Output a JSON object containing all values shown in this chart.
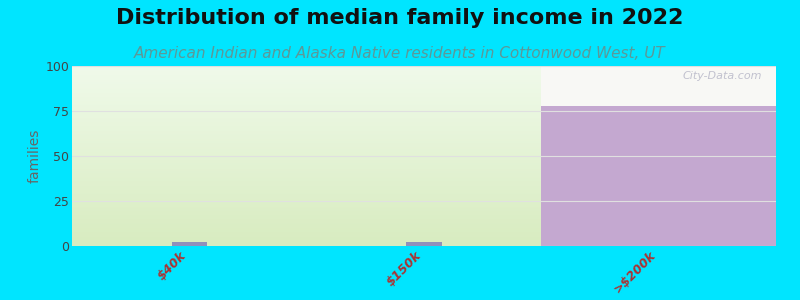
{
  "title": "Distribution of median family income in 2022",
  "subtitle": "American Indian and Alaska Native residents in Cottonwood West, UT",
  "categories": [
    "$40k",
    "$150k",
    ">$200k"
  ],
  "values": [
    2,
    2,
    78
  ],
  "bg_outer": "#00e5ff",
  "bg_plot": "#f8f8f5",
  "ylabel": "families",
  "ylim": [
    0,
    100
  ],
  "yticks": [
    0,
    25,
    50,
    75,
    100
  ],
  "title_fontsize": 16,
  "subtitle_fontsize": 11,
  "subtitle_color": "#5b9999",
  "watermark": "City-Data.com",
  "green_fill_top": "#d8ecc0",
  "green_fill_bottom": "#eef6e8",
  "purple_fill": "#c4a8d0",
  "small_bar_color": "#9090bb",
  "grid_color": "#e0e0e0",
  "tick_color": "#aa3333"
}
